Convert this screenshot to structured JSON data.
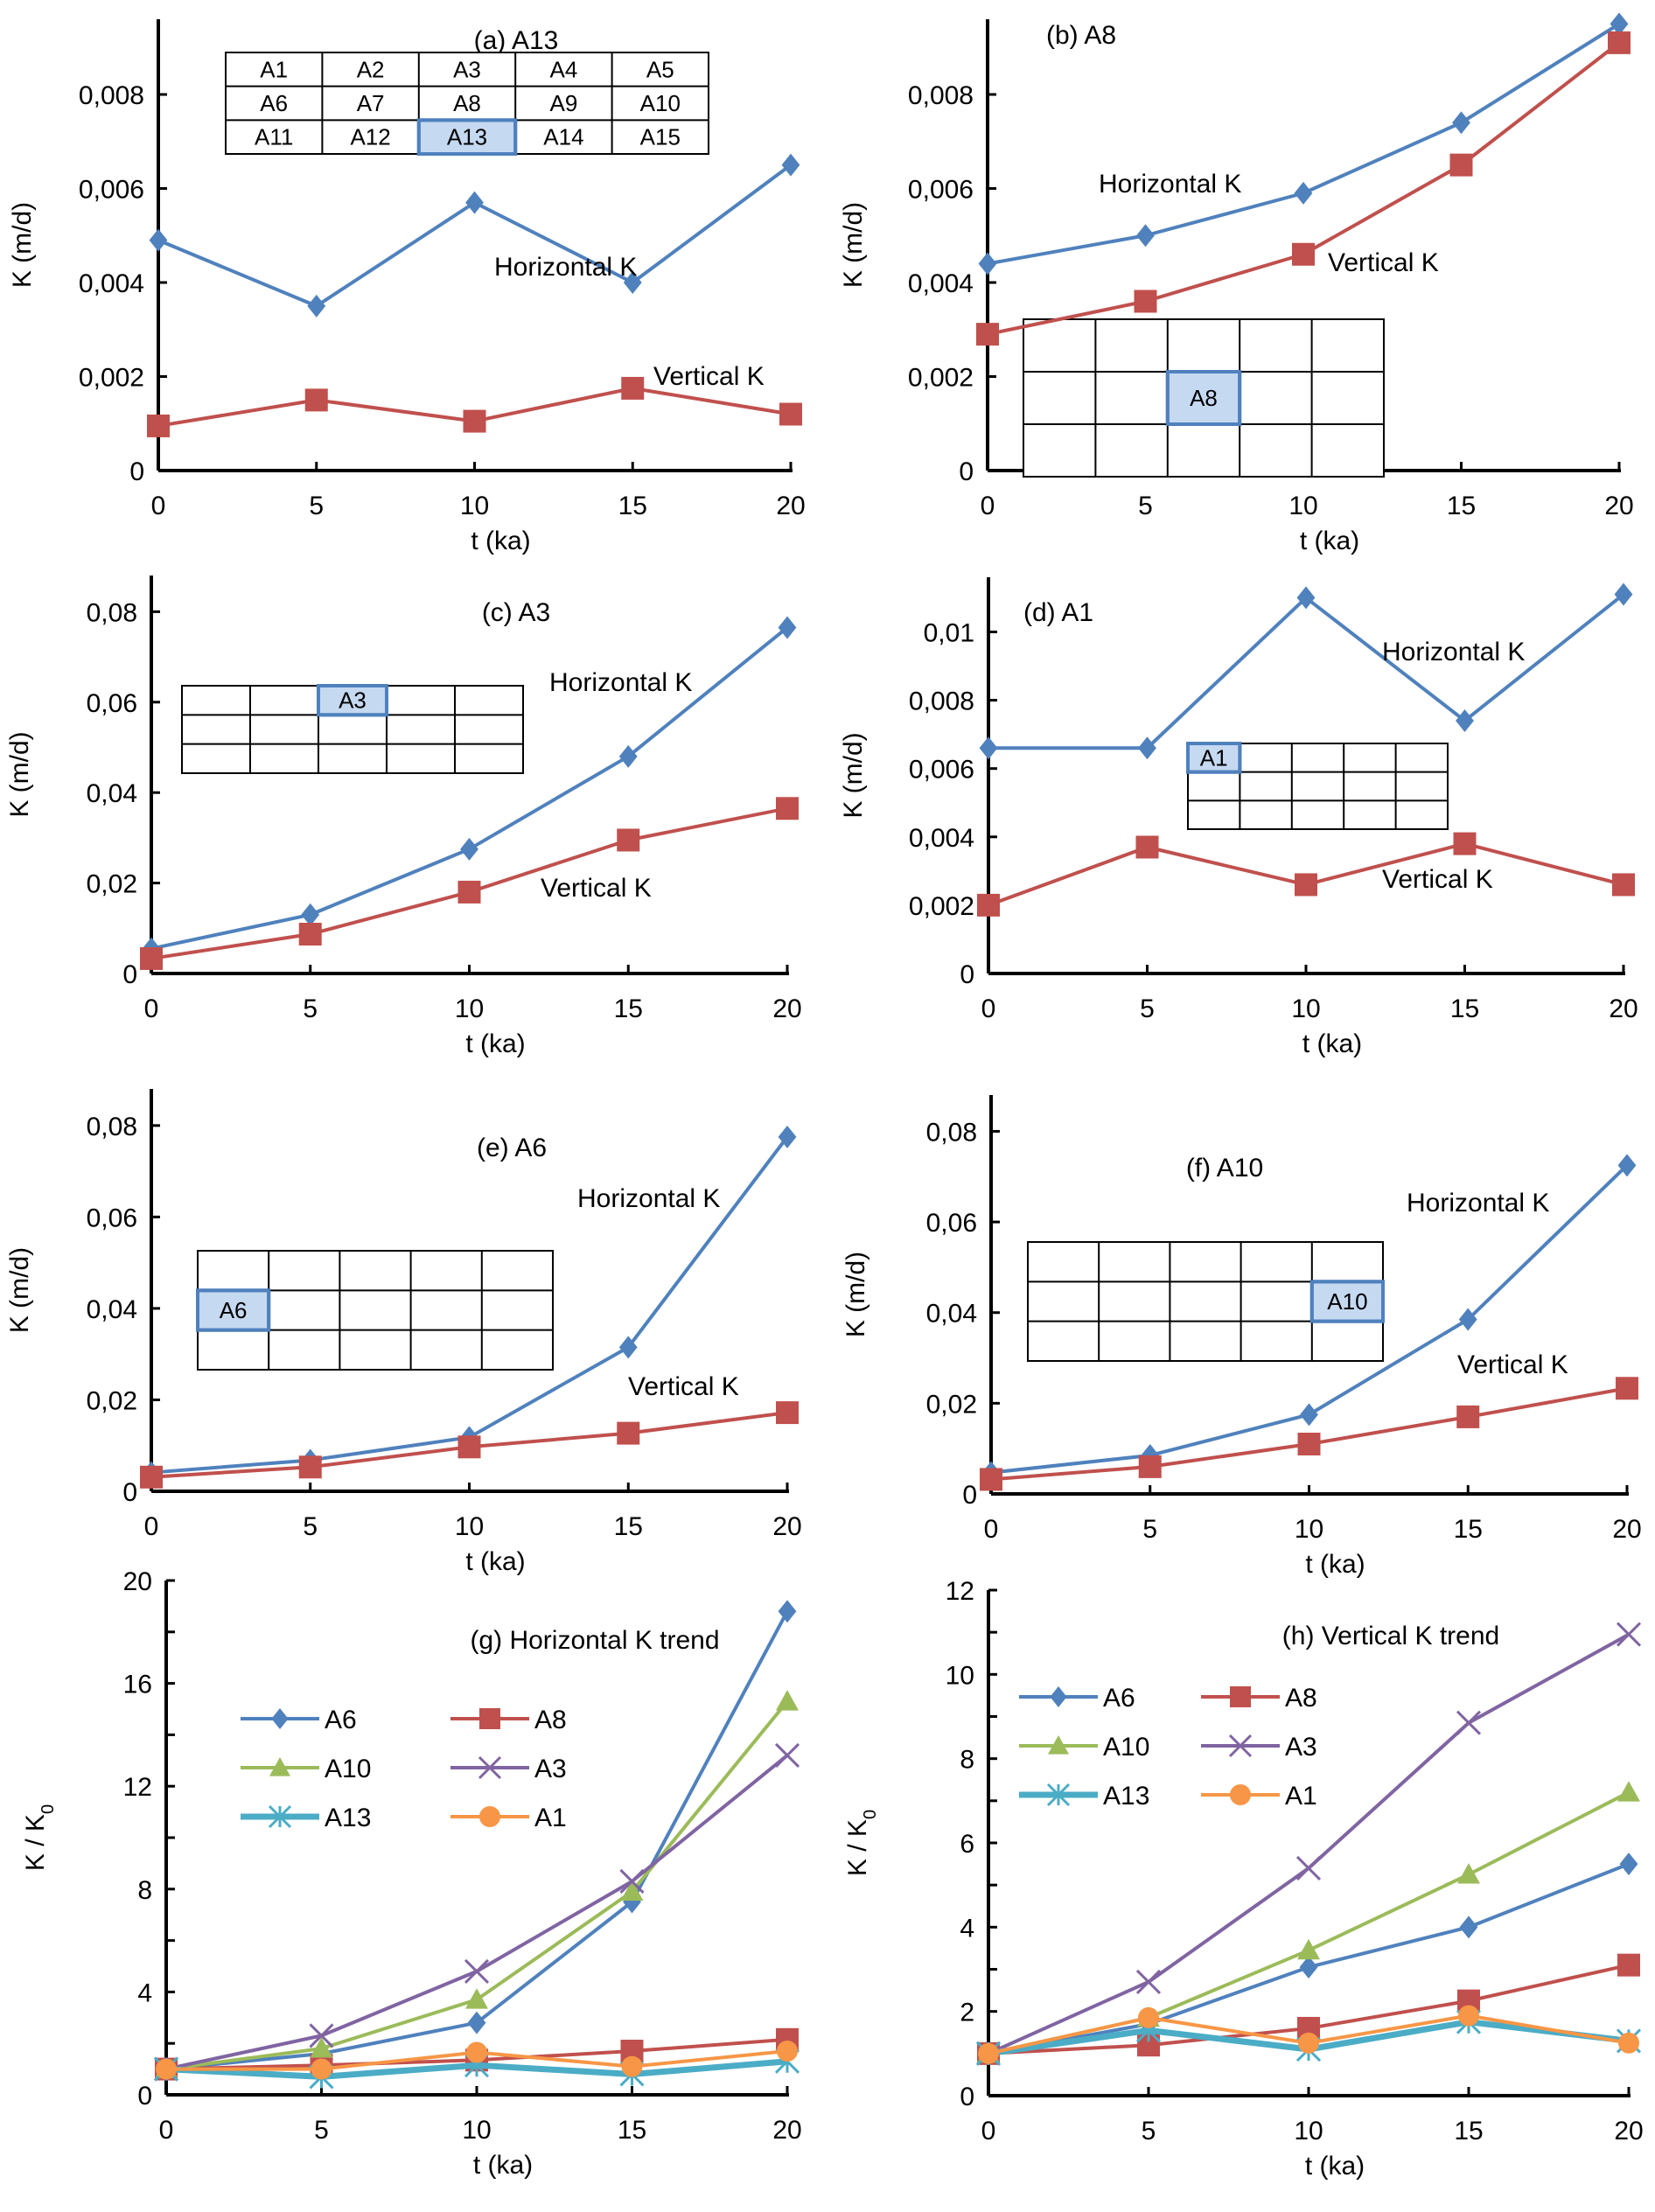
{
  "figure": {
    "description": "Hydraulic conductivity K evolution over time for selected model zones",
    "colors": {
      "horizontal": "#4F81BD",
      "vertical": "#C0504D",
      "A6": "#4F81BD",
      "A8": "#C0504D",
      "A10": "#9BBB59",
      "A3": "#8064A2",
      "A13": "#4BACC6",
      "A1": "#F79646",
      "highlight_fill": "#C5D9F1",
      "highlight_stroke": "#4F81BD"
    }
  },
  "chart_data": [
    {
      "id": "a",
      "type": "line",
      "title": "(a)  A13",
      "xlabel": "t  (ka)",
      "ylabel": "K (m/d)",
      "x": [
        0,
        5,
        10,
        15,
        20
      ],
      "xticks": [
        "0",
        "5",
        "10",
        "15",
        "20"
      ],
      "ylim": [
        0,
        0.0096
      ],
      "yticks": [
        0,
        0.002,
        0.004,
        0.006,
        0.008
      ],
      "ytick_labels": [
        "0",
        "0,002",
        "0,004",
        "0,006",
        "0,008"
      ],
      "grid": false,
      "series": [
        {
          "name": "Horizontal K",
          "marker": "diamond",
          "values": [
            0.0049,
            0.0035,
            0.0057,
            0.004,
            0.0065
          ]
        },
        {
          "name": "Vertical K",
          "marker": "square",
          "values": [
            0.00095,
            0.0015,
            0.00105,
            0.00175,
            0.0012
          ]
        }
      ],
      "annotations": [
        "Horizontal K",
        "Vertical K"
      ],
      "zone_grid": {
        "labels": [
          [
            "A1",
            "A2",
            "A3",
            "A4",
            "A5"
          ],
          [
            "A6",
            "A7",
            "A8",
            "A9",
            "A10"
          ],
          [
            "A11",
            "A12",
            "A13",
            "A14",
            "A15"
          ]
        ],
        "highlight": "A13",
        "show_all_labels": true
      }
    },
    {
      "id": "b",
      "type": "line",
      "title": "(b) A8",
      "xlabel": "t  (ka)",
      "ylabel": "K (m/d)",
      "x": [
        0,
        5,
        10,
        15,
        20
      ],
      "xticks": [
        "0",
        "5",
        "10",
        "15",
        "20"
      ],
      "ylim": [
        0,
        0.0096
      ],
      "yticks": [
        0,
        0.002,
        0.004,
        0.006,
        0.008
      ],
      "ytick_labels": [
        "0",
        "0,002",
        "0,004",
        "0,006",
        "0,008"
      ],
      "grid": false,
      "series": [
        {
          "name": "Horizontal K",
          "marker": "diamond",
          "values": [
            0.0044,
            0.005,
            0.0059,
            0.0074,
            0.0095
          ]
        },
        {
          "name": "Vertical K",
          "marker": "square",
          "values": [
            0.0029,
            0.0036,
            0.0046,
            0.0065,
            0.0091
          ]
        }
      ],
      "annotations": [
        "Horizontal K",
        "Vertical K"
      ],
      "zone_grid": {
        "highlight": "A8",
        "row": 1,
        "col": 2
      }
    },
    {
      "id": "c",
      "type": "line",
      "title": "(c)  A3",
      "xlabel": "t  (ka)",
      "ylabel": "K (m/d)",
      "x": [
        0,
        5,
        10,
        15,
        20
      ],
      "xticks": [
        "0",
        "5",
        "10",
        "15",
        "20"
      ],
      "ylim": [
        0,
        0.088
      ],
      "yticks": [
        0,
        0.02,
        0.04,
        0.06,
        0.08
      ],
      "ytick_labels": [
        "0",
        "0,02",
        "0,04",
        "0,06",
        "0,08"
      ],
      "grid": false,
      "series": [
        {
          "name": "Horizontal K",
          "marker": "diamond",
          "values": [
            0.0055,
            0.013,
            0.0275,
            0.048,
            0.0765
          ]
        },
        {
          "name": "Vertical K",
          "marker": "square",
          "values": [
            0.0033,
            0.0087,
            0.018,
            0.0295,
            0.0365
          ]
        }
      ],
      "annotations": [
        "Horizontal K",
        "Vertical K"
      ],
      "zone_grid": {
        "highlight": "A3",
        "row": 0,
        "col": 2
      }
    },
    {
      "id": "d",
      "type": "line",
      "title": "(d) A1",
      "xlabel": "t  (ka)",
      "ylabel": "K (m/d)",
      "x": [
        0,
        5,
        10,
        15,
        20
      ],
      "xticks": [
        "0",
        "5",
        "10",
        "15",
        "20"
      ],
      "ylim": [
        0,
        0.0116
      ],
      "yticks": [
        0,
        0.002,
        0.004,
        0.006,
        0.008,
        0.01
      ],
      "ytick_labels": [
        "0",
        "0,002",
        "0,004",
        "0,006",
        "0,008",
        "0,01"
      ],
      "grid": false,
      "series": [
        {
          "name": "Horizontal K",
          "marker": "diamond",
          "values": [
            0.0066,
            0.0066,
            0.011,
            0.0074,
            0.0111
          ]
        },
        {
          "name": "Vertical K",
          "marker": "square",
          "values": [
            0.002,
            0.0037,
            0.0026,
            0.0038,
            0.0026
          ]
        }
      ],
      "annotations": [
        "Horizontal K",
        "Vertical K"
      ],
      "zone_grid": {
        "highlight": "A1",
        "row": 0,
        "col": 0
      }
    },
    {
      "id": "e",
      "type": "line",
      "title": "(e)  A6",
      "xlabel": "t  (ka)",
      "ylabel": "K (m/d)",
      "x": [
        0,
        5,
        10,
        15,
        20
      ],
      "xticks": [
        "0",
        "5",
        "10",
        "15",
        "20"
      ],
      "ylim": [
        0,
        0.088
      ],
      "yticks": [
        0,
        0.02,
        0.04,
        0.06,
        0.08
      ],
      "ytick_labels": [
        "0",
        "0,02",
        "0,04",
        "0,06",
        "0,08"
      ],
      "grid": false,
      "series": [
        {
          "name": "Horizontal K",
          "marker": "diamond",
          "values": [
            0.0041,
            0.0068,
            0.0118,
            0.0315,
            0.0775
          ]
        },
        {
          "name": "Vertical K",
          "marker": "square",
          "values": [
            0.0031,
            0.0053,
            0.0097,
            0.0127,
            0.0172
          ]
        }
      ],
      "annotations": [
        "Horizontal K",
        "Vertical K"
      ],
      "zone_grid": {
        "highlight": "A6",
        "row": 1,
        "col": 0
      }
    },
    {
      "id": "f",
      "type": "line",
      "title": "(f) A10",
      "xlabel": "t  (ka)",
      "ylabel": "K (m/d)",
      "x": [
        0,
        5,
        10,
        15,
        20
      ],
      "xticks": [
        "0",
        "5",
        "10",
        "15",
        "20"
      ],
      "ylim": [
        0,
        0.088
      ],
      "yticks": [
        0,
        0.02,
        0.04,
        0.06,
        0.08
      ],
      "ytick_labels": [
        "0",
        "0,02",
        "0,04",
        "0,06",
        "0,08"
      ],
      "grid": false,
      "series": [
        {
          "name": "Horizontal K",
          "marker": "diamond",
          "values": [
            0.0047,
            0.0085,
            0.0175,
            0.0385,
            0.0725
          ]
        },
        {
          "name": "Vertical K",
          "marker": "square",
          "values": [
            0.0032,
            0.006,
            0.011,
            0.017,
            0.0233
          ]
        }
      ],
      "annotations": [
        "Horizontal K",
        "Vertical K"
      ],
      "zone_grid": {
        "highlight": "A10",
        "row": 1,
        "col": 4
      }
    },
    {
      "id": "g",
      "type": "line",
      "title": "(g)  Horizontal K trend",
      "xlabel": "t  (ka)",
      "ylabel": "K / K0",
      "x": [
        0,
        5,
        10,
        15,
        20
      ],
      "xticks": [
        "0",
        "5",
        "10",
        "15",
        "20"
      ],
      "ylim": [
        0,
        20
      ],
      "yticks": [
        0,
        4,
        8,
        12,
        16,
        20
      ],
      "ytick_labels": [
        "0",
        "4",
        "8",
        "12",
        "16",
        "20"
      ],
      "minor_yticks": [
        2,
        6,
        10,
        14,
        18
      ],
      "grid": false,
      "legend": "top-left, 2 columns",
      "series": [
        {
          "name": "A6",
          "marker": "diamond",
          "values": [
            1.0,
            1.6,
            2.8,
            7.5,
            18.8
          ]
        },
        {
          "name": "A8",
          "marker": "square",
          "values": [
            1.0,
            1.15,
            1.35,
            1.7,
            2.15
          ]
        },
        {
          "name": "A10",
          "marker": "triangle",
          "values": [
            1.0,
            1.8,
            3.7,
            7.9,
            15.3
          ]
        },
        {
          "name": "A3",
          "marker": "x",
          "values": [
            1.0,
            2.3,
            4.8,
            8.3,
            13.2
          ]
        },
        {
          "name": "A13",
          "marker": "star",
          "values": [
            1.0,
            0.7,
            1.15,
            0.8,
            1.3
          ]
        },
        {
          "name": "A1",
          "marker": "circle",
          "values": [
            1.0,
            1.0,
            1.65,
            1.1,
            1.7
          ]
        }
      ]
    },
    {
      "id": "h",
      "type": "line",
      "title": "(h) Vertical K trend",
      "xlabel": "t  (ka)",
      "ylabel": "K / K0",
      "x": [
        0,
        5,
        10,
        15,
        20
      ],
      "xticks": [
        "0",
        "5",
        "10",
        "15",
        "20"
      ],
      "ylim": [
        0,
        12
      ],
      "yticks": [
        0,
        2,
        4,
        6,
        8,
        10,
        12
      ],
      "ytick_labels": [
        "0",
        "2",
        "4",
        "6",
        "8",
        "10",
        "12"
      ],
      "minor_yticks": [
        1,
        3,
        5,
        7,
        9,
        11
      ],
      "grid": false,
      "legend": "top-left, 2 columns",
      "series": [
        {
          "name": "A6",
          "marker": "diamond",
          "values": [
            1.0,
            1.7,
            3.05,
            4.0,
            5.5
          ]
        },
        {
          "name": "A8",
          "marker": "square",
          "values": [
            1.0,
            1.2,
            1.6,
            2.25,
            3.1
          ]
        },
        {
          "name": "A10",
          "marker": "triangle",
          "values": [
            1.0,
            1.85,
            3.45,
            5.25,
            7.2
          ]
        },
        {
          "name": "A3",
          "marker": "x",
          "values": [
            1.0,
            2.7,
            5.4,
            8.85,
            10.95
          ]
        },
        {
          "name": "A13",
          "marker": "star",
          "values": [
            1.0,
            1.55,
            1.1,
            1.75,
            1.3
          ]
        },
        {
          "name": "A1",
          "marker": "circle",
          "values": [
            1.0,
            1.85,
            1.25,
            1.9,
            1.25
          ]
        }
      ]
    }
  ]
}
